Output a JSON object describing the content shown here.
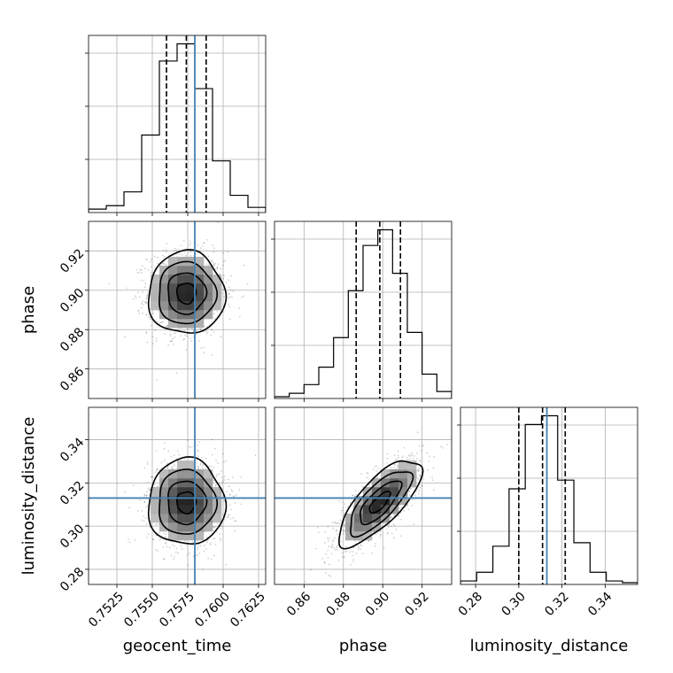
{
  "chart_data": {
    "type": "corner",
    "parameters": [
      "geocent_time",
      "phase",
      "luminosity_distance"
    ],
    "truths": {
      "geocent_time": 0.758,
      "phase": null,
      "luminosity_distance": 0.313
    },
    "axes": {
      "geocent_time": {
        "range": [
          0.7505,
          0.763
        ],
        "ticks": [
          0.7525,
          0.755,
          0.7575,
          0.76,
          0.7625
        ],
        "tick_labels": [
          "0.7525",
          "0.7550",
          "0.7575",
          "0.7600",
          "0.7625"
        ]
      },
      "phase": {
        "range": [
          0.845,
          0.935
        ],
        "ticks": [
          0.86,
          0.88,
          0.9,
          0.92
        ],
        "tick_labels": [
          "0.86",
          "0.88",
          "0.90",
          "0.92"
        ]
      },
      "luminosity_distance": {
        "range": [
          0.273,
          0.355
        ],
        "ticks": [
          0.28,
          0.3,
          0.32,
          0.34
        ],
        "tick_labels": [
          "0.28",
          "0.30",
          "0.32",
          "0.34"
        ]
      }
    },
    "histograms": {
      "geocent_time": {
        "bin_edges": [
          0.7505,
          0.75175,
          0.753,
          0.75425,
          0.7555,
          0.75675,
          0.758,
          0.75925,
          0.7605,
          0.76175,
          0.763
        ],
        "counts": [
          2,
          4,
          12,
          45,
          88,
          98,
          72,
          30,
          10,
          3
        ],
        "quantiles": [
          0.756,
          0.7574,
          0.7588
        ]
      },
      "phase": {
        "bin_edges": [
          0.845,
          0.8525,
          0.86,
          0.8675,
          0.875,
          0.8825,
          0.89,
          0.8975,
          0.905,
          0.9125,
          0.92,
          0.9275,
          0.935
        ],
        "counts": [
          1,
          3,
          8,
          18,
          35,
          62,
          88,
          97,
          72,
          38,
          14,
          4
        ],
        "quantiles": [
          0.8865,
          0.8985,
          0.909
        ]
      },
      "luminosity_distance": {
        "bin_edges": [
          0.273,
          0.2805,
          0.288,
          0.2955,
          0.303,
          0.3105,
          0.318,
          0.3255,
          0.333,
          0.3405,
          0.348,
          0.355
        ],
        "counts": [
          2,
          7,
          22,
          55,
          92,
          97,
          60,
          24,
          7,
          2,
          1
        ],
        "quantiles": [
          0.3,
          0.311,
          0.3215
        ]
      }
    },
    "pairs": [
      {
        "x": "geocent_time",
        "y": "phase",
        "center": [
          0.7574,
          0.8985
        ],
        "sigma": [
          0.00135,
          0.0105
        ],
        "corr": 0.0
      },
      {
        "x": "geocent_time",
        "y": "luminosity_distance",
        "center": [
          0.7574,
          0.311
        ],
        "sigma": [
          0.00135,
          0.01
        ],
        "corr": 0.0
      },
      {
        "x": "phase",
        "y": "luminosity_distance",
        "center": [
          0.8985,
          0.311
        ],
        "sigma": [
          0.0105,
          0.01
        ],
        "corr": 0.75
      }
    ],
    "contour_levels_sigma": [
      0.5,
      1.0,
      1.5,
      2.0
    ],
    "legend": "none",
    "grid": true
  }
}
